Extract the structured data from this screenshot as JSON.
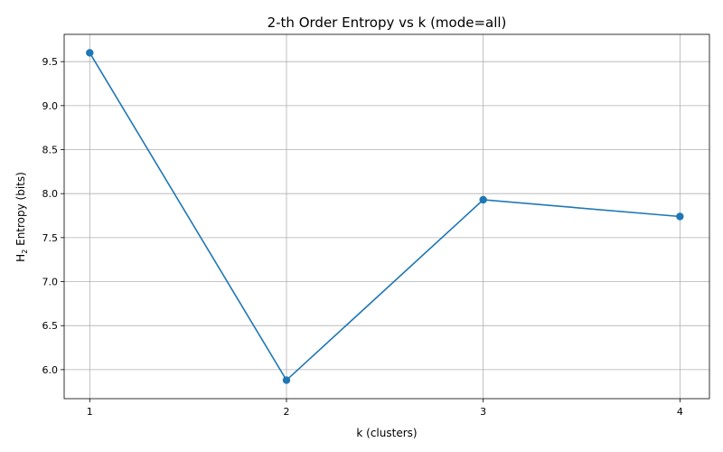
{
  "chart_data": {
    "type": "line",
    "title": "2-th Order Entropy vs k (mode=all)",
    "xlabel": "k (clusters)",
    "ylabel_main": "H",
    "ylabel_sub": "2",
    "ylabel_rest": " Entropy (bits)",
    "x": [
      1,
      2,
      3,
      4
    ],
    "x_ticks": [
      "1",
      "2",
      "3",
      "4"
    ],
    "y_ticks": [
      "6.0",
      "6.5",
      "7.0",
      "7.5",
      "8.0",
      "8.5",
      "9.0",
      "9.5"
    ],
    "y_tick_values": [
      6.0,
      6.5,
      7.0,
      7.5,
      8.0,
      8.5,
      9.0,
      9.5
    ],
    "series": [
      {
        "values": [
          9.6,
          5.88,
          7.93,
          7.74
        ],
        "color": "#1f77b4"
      }
    ],
    "xlim": [
      0.87,
      4.15
    ],
    "ylim": [
      5.67,
      9.81
    ],
    "grid": true,
    "marker": "circle"
  }
}
